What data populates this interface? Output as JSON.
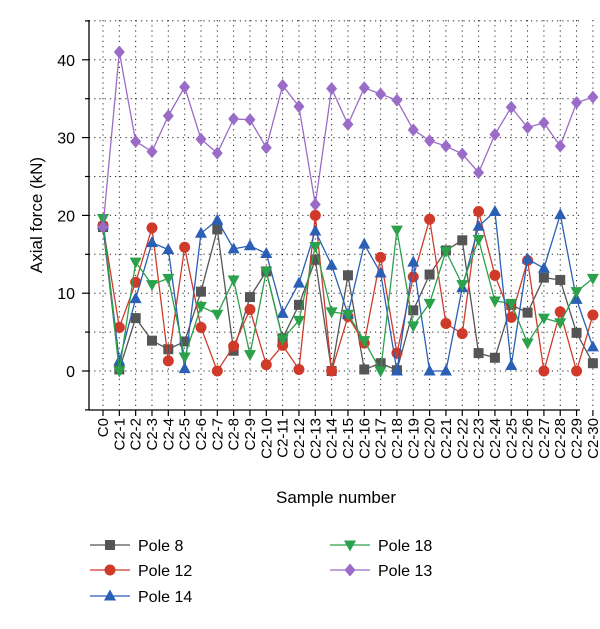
{
  "chart_data": {
    "type": "line",
    "xlabel": "Sample number",
    "ylabel": "Axial force (kN)",
    "ylim": [
      -5,
      45
    ],
    "yticks": [
      0,
      10,
      20,
      30,
      40
    ],
    "grid": true,
    "legend_placement": "bottom",
    "categories": [
      "C0",
      "C2-1",
      "C2-2",
      "C2-3",
      "C2-4",
      "C2-5",
      "C2-6",
      "C2-7",
      "C2-8",
      "C2-9",
      "C2-10",
      "C2-11",
      "C2-12",
      "C2-13",
      "C2-14",
      "C2-15",
      "C2-16",
      "C2-17",
      "C2-18",
      "C2-19",
      "C2-20",
      "C2-21",
      "C2-22",
      "C2-23",
      "C2-24",
      "C2-25",
      "C2-26",
      "C2-27",
      "C2-28",
      "C2-29",
      "C2-30"
    ],
    "series": [
      {
        "name": "Pole 8",
        "color": "#555555",
        "marker": "square",
        "values": [
          18.5,
          0.2,
          6.8,
          3.9,
          2.8,
          3.8,
          10.2,
          18.2,
          2.6,
          9.5,
          12.8,
          4.2,
          8.5,
          14.3,
          0.0,
          12.3,
          0.2,
          1.0,
          0.1,
          7.8,
          12.4,
          15.5,
          16.8,
          2.3,
          1.7,
          8.5,
          7.5,
          12.0,
          11.7,
          4.9,
          1.0
        ]
      },
      {
        "name": "Pole 12",
        "color": "#d03a2a",
        "marker": "circle",
        "values": [
          18.7,
          5.6,
          11.4,
          18.4,
          1.3,
          15.9,
          5.6,
          0.0,
          3.2,
          7.9,
          0.8,
          3.3,
          0.2,
          20.0,
          0.0,
          7.0,
          3.6,
          14.6,
          2.3,
          12.1,
          19.5,
          6.1,
          4.8,
          20.5,
          12.3,
          6.9,
          14.2,
          0.0,
          7.6,
          0.0,
          7.2
        ]
      },
      {
        "name": "Pole 14",
        "color": "#2a5fb5",
        "marker": "triangle-up",
        "values": [
          18.8,
          1.3,
          9.3,
          16.5,
          15.6,
          0.3,
          17.7,
          19.4,
          15.7,
          16.1,
          15.1,
          7.4,
          11.3,
          18.0,
          13.6,
          7.3,
          16.3,
          12.6,
          0.0,
          14.0,
          0.0,
          0.0,
          10.7,
          18.6,
          20.5,
          0.7,
          14.4,
          13.2,
          20.1,
          9.2,
          3.1
        ]
      },
      {
        "name": "Pole 18",
        "color": "#2aa14a",
        "marker": "triangle-down",
        "values": [
          19.6,
          0.0,
          14.0,
          11.1,
          11.9,
          1.8,
          8.3,
          7.3,
          11.7,
          2.1,
          12.8,
          4.1,
          6.5,
          16.0,
          7.6,
          7.3,
          3.9,
          0.0,
          18.1,
          5.8,
          8.7,
          15.4,
          11.1,
          16.9,
          9.0,
          8.7,
          3.6,
          6.8,
          6.2,
          10.2,
          11.9
        ]
      },
      {
        "name": "Pole 13",
        "color": "#9b6cc7",
        "marker": "diamond",
        "values": [
          18.5,
          41.0,
          29.5,
          28.2,
          32.8,
          36.5,
          29.8,
          28.0,
          32.4,
          32.3,
          28.7,
          36.7,
          34.0,
          21.4,
          36.3,
          31.7,
          36.4,
          35.6,
          34.8,
          31.0,
          29.6,
          28.9,
          27.9,
          25.5,
          30.4,
          33.9,
          31.3,
          31.9,
          28.9,
          34.5,
          35.2
        ]
      }
    ]
  }
}
